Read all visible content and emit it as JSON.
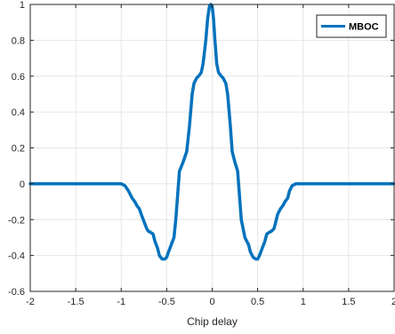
{
  "chart_data": {
    "type": "line",
    "title": "",
    "xlabel": "Chip delay",
    "ylabel": "",
    "xlim": [
      -2,
      2
    ],
    "ylim": [
      -0.6,
      1
    ],
    "xticks": [
      -2,
      -1.5,
      -1,
      -0.5,
      0,
      0.5,
      1,
      1.5,
      2
    ],
    "xtick_labels": [
      "-2",
      "-1.5",
      "-1",
      "-0.5",
      "0",
      "0.5",
      "1",
      "1.5",
      "2"
    ],
    "yticks": [
      -0.6,
      -0.4,
      -0.2,
      0,
      0.2,
      0.4,
      0.6,
      0.8,
      1
    ],
    "ytick_labels": [
      "-0.6",
      "-0.4",
      "-0.2",
      "0",
      "0.2",
      "0.4",
      "0.6",
      "0.8",
      "1"
    ],
    "grid": true,
    "legend_position": "top-right",
    "series": [
      {
        "name": "MBOC",
        "color": "#0072BD",
        "x": [
          -2,
          -1.0,
          -0.96,
          -0.92,
          -0.88,
          -0.85,
          -0.83,
          -0.8,
          -0.78,
          -0.75,
          -0.72,
          -0.7,
          -0.68,
          -0.65,
          -0.63,
          -0.6,
          -0.58,
          -0.55,
          -0.52,
          -0.5,
          -0.48,
          -0.45,
          -0.42,
          -0.4,
          -0.36,
          -0.32,
          -0.28,
          -0.25,
          -0.22,
          -0.2,
          -0.17,
          -0.15,
          -0.12,
          -0.1,
          -0.07,
          -0.05,
          -0.03,
          -0.015,
          0,
          0.015,
          0.03,
          0.05,
          0.07,
          0.1,
          0.12,
          0.15,
          0.17,
          0.2,
          0.22,
          0.25,
          0.28,
          0.32,
          0.36,
          0.4,
          0.42,
          0.45,
          0.48,
          0.5,
          0.52,
          0.55,
          0.58,
          0.6,
          0.63,
          0.65,
          0.68,
          0.7,
          0.72,
          0.75,
          0.78,
          0.8,
          0.83,
          0.85,
          0.88,
          0.92,
          0.96,
          1.0,
          2
        ],
        "y": [
          0,
          0,
          -0.01,
          -0.04,
          -0.08,
          -0.1,
          -0.12,
          -0.14,
          -0.17,
          -0.21,
          -0.25,
          -0.265,
          -0.27,
          -0.28,
          -0.32,
          -0.36,
          -0.4,
          -0.42,
          -0.42,
          -0.41,
          -0.38,
          -0.34,
          -0.3,
          -0.2,
          0.07,
          0.12,
          0.18,
          0.32,
          0.5,
          0.56,
          0.59,
          0.6,
          0.62,
          0.67,
          0.8,
          0.92,
          0.99,
          1.0,
          0.99,
          0.92,
          0.8,
          0.67,
          0.62,
          0.6,
          0.59,
          0.56,
          0.5,
          0.32,
          0.18,
          0.12,
          0.07,
          -0.2,
          -0.3,
          -0.34,
          -0.38,
          -0.41,
          -0.42,
          -0.42,
          -0.4,
          -0.36,
          -0.32,
          -0.28,
          -0.27,
          -0.265,
          -0.25,
          -0.21,
          -0.17,
          -0.14,
          -0.12,
          -0.1,
          -0.08,
          -0.04,
          -0.01,
          0,
          0,
          0,
          0
        ]
      }
    ]
  }
}
